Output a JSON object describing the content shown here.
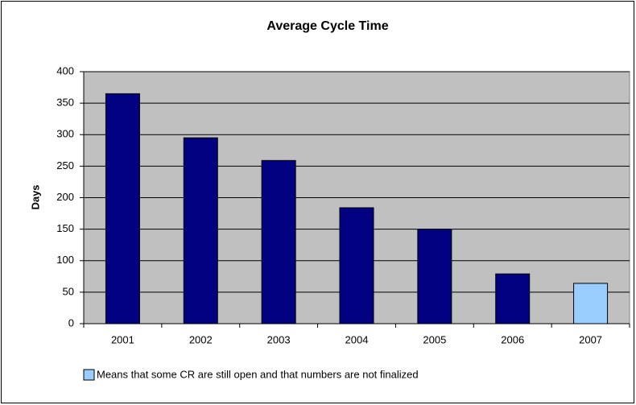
{
  "chart_data": {
    "type": "bar",
    "title": "Average Cycle Time",
    "y_label": "Days",
    "categories": [
      "2001",
      "2002",
      "2003",
      "2004",
      "2005",
      "2006",
      "2007"
    ],
    "values": [
      365,
      295,
      259,
      184,
      150,
      79,
      64
    ],
    "colors": [
      "#000080",
      "#000080",
      "#000080",
      "#000080",
      "#000080",
      "#000080",
      "#99ccff"
    ],
    "ylim": [
      0,
      400
    ],
    "yticks": [
      0,
      50,
      100,
      150,
      200,
      250,
      300,
      350,
      400
    ],
    "grid": true,
    "note": {
      "text": "Means that some CR are still open and that numbers are not finalized",
      "color": "#99ccff"
    }
  }
}
